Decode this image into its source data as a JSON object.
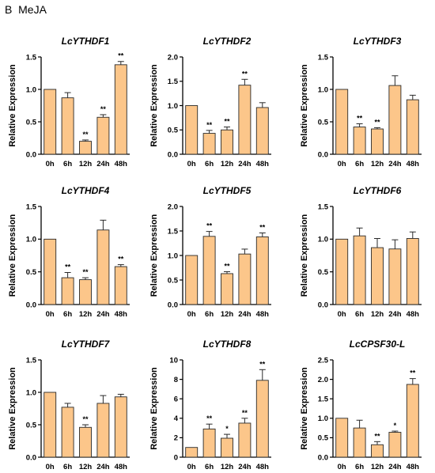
{
  "figure": {
    "panel_label": "B",
    "treatment": "MeJA"
  },
  "colors": {
    "bar_fill": "#fcc68a",
    "bar_stroke": "#2a2a2a",
    "axis": "#000000"
  },
  "chart_data": [
    {
      "type": "bar",
      "title": "LcYTHDF1",
      "ylabel": "Relative Expression",
      "categories": [
        "0h",
        "6h",
        "12h",
        "24h",
        "48h"
      ],
      "values": [
        1.0,
        0.87,
        0.2,
        0.57,
        1.38
      ],
      "errors": [
        0.0,
        0.08,
        0.02,
        0.04,
        0.05
      ],
      "significance": [
        "",
        "",
        "**",
        "**",
        "**"
      ],
      "ylim": [
        0,
        1.5
      ],
      "yticks": [
        "0.0",
        "0.5",
        "1.0",
        "1.5"
      ],
      "ytick_values": [
        0,
        0.5,
        1.0,
        1.5
      ]
    },
    {
      "type": "bar",
      "title": "LcYTHDF2",
      "ylabel": "Relative Expression",
      "categories": [
        "0h",
        "6h",
        "12h",
        "24h",
        "48h"
      ],
      "values": [
        1.0,
        0.43,
        0.5,
        1.42,
        0.96
      ],
      "errors": [
        0.0,
        0.06,
        0.06,
        0.12,
        0.1
      ],
      "significance": [
        "",
        "**",
        "**",
        "**",
        ""
      ],
      "ylim": [
        0,
        2.0
      ],
      "yticks": [
        "0.0",
        "0.5",
        "1.0",
        "1.5",
        "2.0"
      ],
      "ytick_values": [
        0,
        0.5,
        1.0,
        1.5,
        2.0
      ]
    },
    {
      "type": "bar",
      "title": "LcYTHDF3",
      "ylabel": "Relative Expression",
      "categories": [
        "0h",
        "6h",
        "12h",
        "24h",
        "48h"
      ],
      "values": [
        1.0,
        0.42,
        0.39,
        1.06,
        0.84
      ],
      "errors": [
        0.0,
        0.05,
        0.02,
        0.15,
        0.07
      ],
      "significance": [
        "",
        "**",
        "**",
        "",
        ""
      ],
      "ylim": [
        0,
        1.5
      ],
      "yticks": [
        "0.0",
        "0.5",
        "1.0",
        "1.5"
      ],
      "ytick_values": [
        0,
        0.5,
        1.0,
        1.5
      ]
    },
    {
      "type": "bar",
      "title": "LcYTHDF4",
      "ylabel": "Relative Expression",
      "categories": [
        "0h",
        "6h",
        "12h",
        "24h",
        "48h"
      ],
      "values": [
        1.0,
        0.41,
        0.38,
        1.14,
        0.58
      ],
      "errors": [
        0.0,
        0.08,
        0.03,
        0.15,
        0.03
      ],
      "significance": [
        "",
        "**",
        "**",
        "",
        "**"
      ],
      "ylim": [
        0,
        1.5
      ],
      "yticks": [
        "0.0",
        "0.5",
        "1.0",
        "1.5"
      ],
      "ytick_values": [
        0,
        0.5,
        1.0,
        1.5
      ]
    },
    {
      "type": "bar",
      "title": "LcYTHDF5",
      "ylabel": "Relative Expression",
      "categories": [
        "0h",
        "6h",
        "12h",
        "24h",
        "48h"
      ],
      "values": [
        1.0,
        1.39,
        0.63,
        1.03,
        1.38
      ],
      "errors": [
        0.0,
        0.1,
        0.04,
        0.1,
        0.08
      ],
      "significance": [
        "",
        "**",
        "**",
        "",
        "**"
      ],
      "ylim": [
        0,
        2.0
      ],
      "yticks": [
        "0.0",
        "0.5",
        "1.0",
        "1.5",
        "2.0"
      ],
      "ytick_values": [
        0,
        0.5,
        1.0,
        1.5,
        2.0
      ]
    },
    {
      "type": "bar",
      "title": "LcYTHDF6",
      "ylabel": "Relative Expression",
      "categories": [
        "0h",
        "6h",
        "12h",
        "24h",
        "48h"
      ],
      "values": [
        1.0,
        1.05,
        0.87,
        0.85,
        1.01
      ],
      "errors": [
        0.0,
        0.12,
        0.14,
        0.14,
        0.1
      ],
      "significance": [
        "",
        "",
        "",
        "",
        ""
      ],
      "ylim": [
        0,
        1.5
      ],
      "yticks": [
        "0.0",
        "0.5",
        "1.0",
        "1.5"
      ],
      "ytick_values": [
        0,
        0.5,
        1.0,
        1.5
      ]
    },
    {
      "type": "bar",
      "title": "LcYTHDF7",
      "ylabel": "Relative Expression",
      "categories": [
        "0h",
        "6h",
        "12h",
        "24h",
        "48h"
      ],
      "values": [
        1.0,
        0.77,
        0.46,
        0.83,
        0.93
      ],
      "errors": [
        0.0,
        0.06,
        0.04,
        0.12,
        0.04
      ],
      "significance": [
        "",
        "",
        "**",
        "",
        ""
      ],
      "ylim": [
        0,
        1.5
      ],
      "yticks": [
        "0.0",
        "0.5",
        "1.0",
        "1.5"
      ],
      "ytick_values": [
        0,
        0.5,
        1.0,
        1.5
      ]
    },
    {
      "type": "bar",
      "title": "LcYTHDF8",
      "ylabel": "Relative Expression",
      "categories": [
        "0h",
        "6h",
        "12h",
        "24h",
        "48h"
      ],
      "values": [
        1.0,
        2.9,
        1.95,
        3.5,
        7.9
      ],
      "errors": [
        0.0,
        0.5,
        0.4,
        0.5,
        1.1
      ],
      "significance": [
        "",
        "**",
        "*",
        "**",
        "**"
      ],
      "ylim": [
        0,
        10
      ],
      "yticks": [
        "0",
        "2",
        "4",
        "6",
        "8",
        "10"
      ],
      "ytick_values": [
        0,
        2,
        4,
        6,
        8,
        10
      ]
    },
    {
      "type": "bar",
      "title": "LcCPSF30-L",
      "ylabel": "Relative Expression",
      "categories": [
        "0h",
        "6h",
        "12h",
        "24h",
        "48h"
      ],
      "values": [
        1.0,
        0.75,
        0.32,
        0.64,
        1.87
      ],
      "errors": [
        0.0,
        0.2,
        0.08,
        0.03,
        0.15
      ],
      "significance": [
        "",
        "",
        "**",
        "*",
        "**"
      ],
      "ylim": [
        0,
        2.5
      ],
      "yticks": [
        "0.0",
        "0.5",
        "1.0",
        "1.5",
        "2.0",
        "2.5"
      ],
      "ytick_values": [
        0,
        0.5,
        1.0,
        1.5,
        2.0,
        2.5
      ]
    }
  ]
}
